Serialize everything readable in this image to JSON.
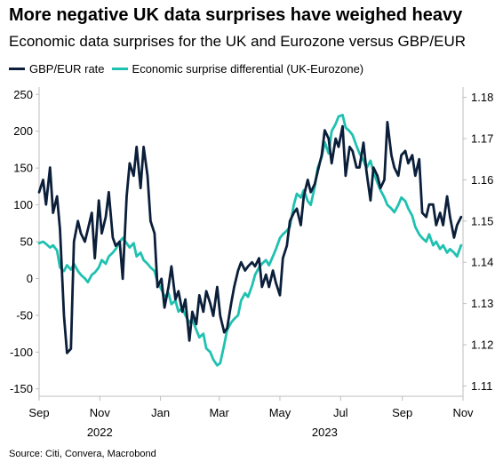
{
  "title": "More negative UK data surprises have weighed heavy",
  "subtitle": "Economic data surprises for the UK and Eurozone versus GBP/EUR",
  "source": "Source: Citi, Convera, Macrobond",
  "chart_data": {
    "type": "line",
    "legend_position": "top-left",
    "grid": false,
    "x_range": [
      "2022-09-01",
      "2023-11-01"
    ],
    "x_tick_labels": [
      "Sep",
      "Nov",
      "Jan",
      "Mar",
      "May",
      "Jul",
      "Sep",
      "Nov"
    ],
    "year_labels": [
      "2022",
      "2023"
    ],
    "left_axis": {
      "range": [
        -160,
        260
      ],
      "ticks": [
        250,
        200,
        150,
        100,
        50,
        0,
        -50,
        -100,
        -150
      ]
    },
    "right_axis": {
      "range": [
        1.1075,
        1.1825
      ],
      "ticks": [
        "1.18",
        "1.17",
        "1.16",
        "1.15",
        "1.14",
        "1.13",
        "1.12",
        "1.11"
      ]
    },
    "series": [
      {
        "name": "GBP/EUR rate",
        "axis": "right",
        "color": "#0b1f3a",
        "points": [
          [
            "2022-09-01",
            1.157
          ],
          [
            "2022-09-05",
            1.16
          ],
          [
            "2022-09-08",
            1.154
          ],
          [
            "2022-09-12",
            1.163
          ],
          [
            "2022-09-15",
            1.152
          ],
          [
            "2022-09-19",
            1.156
          ],
          [
            "2022-09-22",
            1.148
          ],
          [
            "2022-09-26",
            1.127
          ],
          [
            "2022-09-29",
            1.118
          ],
          [
            "2022-10-03",
            1.119
          ],
          [
            "2022-10-06",
            1.145
          ],
          [
            "2022-10-10",
            1.15
          ],
          [
            "2022-10-13",
            1.147
          ],
          [
            "2022-10-17",
            1.145
          ],
          [
            "2022-10-20",
            1.148
          ],
          [
            "2022-10-24",
            1.152
          ],
          [
            "2022-10-27",
            1.141
          ],
          [
            "2022-10-31",
            1.155
          ],
          [
            "2022-11-03",
            1.147
          ],
          [
            "2022-11-07",
            1.151
          ],
          [
            "2022-11-10",
            1.157
          ],
          [
            "2022-11-14",
            1.146
          ],
          [
            "2022-11-17",
            1.144
          ],
          [
            "2022-11-21",
            1.145
          ],
          [
            "2022-11-24",
            1.136
          ],
          [
            "2022-11-28",
            1.156
          ],
          [
            "2022-12-01",
            1.164
          ],
          [
            "2022-12-05",
            1.161
          ],
          [
            "2022-12-08",
            1.168
          ],
          [
            "2022-12-12",
            1.158
          ],
          [
            "2022-12-15",
            1.168
          ],
          [
            "2022-12-19",
            1.161
          ],
          [
            "2022-12-22",
            1.15
          ],
          [
            "2022-12-26",
            1.147
          ],
          [
            "2022-12-29",
            1.134
          ],
          [
            "2023-01-02",
            1.136
          ],
          [
            "2023-01-05",
            1.129
          ],
          [
            "2023-01-09",
            1.134
          ],
          [
            "2023-01-12",
            1.139
          ],
          [
            "2023-01-16",
            1.131
          ],
          [
            "2023-01-19",
            1.133
          ],
          [
            "2023-01-23",
            1.128
          ],
          [
            "2023-01-26",
            1.131
          ],
          [
            "2023-01-30",
            1.121
          ],
          [
            "2023-02-02",
            1.128
          ],
          [
            "2023-02-06",
            1.125
          ],
          [
            "2023-02-09",
            1.132
          ],
          [
            "2023-02-13",
            1.128
          ],
          [
            "2023-02-16",
            1.133
          ],
          [
            "2023-02-20",
            1.13
          ],
          [
            "2023-02-23",
            1.127
          ],
          [
            "2023-02-27",
            1.134
          ],
          [
            "2023-03-02",
            1.127
          ],
          [
            "2023-03-06",
            1.123
          ],
          [
            "2023-03-09",
            1.124
          ],
          [
            "2023-03-13",
            1.13
          ],
          [
            "2023-03-16",
            1.134
          ],
          [
            "2023-03-20",
            1.138
          ],
          [
            "2023-03-23",
            1.14
          ],
          [
            "2023-03-27",
            1.138
          ],
          [
            "2023-03-30",
            1.139
          ],
          [
            "2023-04-03",
            1.14
          ],
          [
            "2023-04-06",
            1.139
          ],
          [
            "2023-04-10",
            1.141
          ],
          [
            "2023-04-13",
            1.134
          ],
          [
            "2023-04-17",
            1.137
          ],
          [
            "2023-04-20",
            1.134
          ],
          [
            "2023-04-24",
            1.138
          ],
          [
            "2023-04-27",
            1.135
          ],
          [
            "2023-05-01",
            1.132
          ],
          [
            "2023-05-04",
            1.141
          ],
          [
            "2023-05-08",
            1.144
          ],
          [
            "2023-05-11",
            1.15
          ],
          [
            "2023-05-15",
            1.152
          ],
          [
            "2023-05-18",
            1.153
          ],
          [
            "2023-05-22",
            1.149
          ],
          [
            "2023-05-25",
            1.156
          ],
          [
            "2023-05-29",
            1.16
          ],
          [
            "2023-06-01",
            1.157
          ],
          [
            "2023-06-05",
            1.159
          ],
          [
            "2023-06-08",
            1.162
          ],
          [
            "2023-06-12",
            1.166
          ],
          [
            "2023-06-15",
            1.172
          ],
          [
            "2023-06-19",
            1.17
          ],
          [
            "2023-06-22",
            1.164
          ],
          [
            "2023-06-26",
            1.17
          ],
          [
            "2023-06-29",
            1.168
          ],
          [
            "2023-07-03",
            1.173
          ],
          [
            "2023-07-06",
            1.161
          ],
          [
            "2023-07-10",
            1.168
          ],
          [
            "2023-07-13",
            1.167
          ],
          [
            "2023-07-17",
            1.163
          ],
          [
            "2023-07-20",
            1.163
          ],
          [
            "2023-07-24",
            1.169
          ],
          [
            "2023-07-27",
            1.162
          ],
          [
            "2023-07-31",
            1.155
          ],
          [
            "2023-08-03",
            1.163
          ],
          [
            "2023-08-07",
            1.161
          ],
          [
            "2023-08-10",
            1.158
          ],
          [
            "2023-08-14",
            1.16
          ],
          [
            "2023-08-17",
            1.174
          ],
          [
            "2023-08-21",
            1.166
          ],
          [
            "2023-08-24",
            1.163
          ],
          [
            "2023-08-28",
            1.161
          ],
          [
            "2023-08-31",
            1.166
          ],
          [
            "2023-09-04",
            1.167
          ],
          [
            "2023-09-07",
            1.164
          ],
          [
            "2023-09-11",
            1.166
          ],
          [
            "2023-09-14",
            1.161
          ],
          [
            "2023-09-18",
            1.165
          ],
          [
            "2023-09-21",
            1.152
          ],
          [
            "2023-09-25",
            1.151
          ],
          [
            "2023-09-28",
            1.154
          ],
          [
            "2023-10-02",
            1.154
          ],
          [
            "2023-10-05",
            1.149
          ],
          [
            "2023-10-09",
            1.152
          ],
          [
            "2023-10-12",
            1.149
          ],
          [
            "2023-10-16",
            1.156
          ],
          [
            "2023-10-19",
            1.151
          ],
          [
            "2023-10-23",
            1.146
          ],
          [
            "2023-10-26",
            1.149
          ],
          [
            "2023-10-30",
            1.151
          ]
        ]
      },
      {
        "name": "Economic surprise differential (UK-Eurozone)",
        "axis": "left",
        "color": "#1fc1b0",
        "points": [
          [
            "2022-09-01",
            48
          ],
          [
            "2022-09-05",
            50
          ],
          [
            "2022-09-08",
            47
          ],
          [
            "2022-09-12",
            42
          ],
          [
            "2022-09-15",
            45
          ],
          [
            "2022-09-19",
            38
          ],
          [
            "2022-09-22",
            15
          ],
          [
            "2022-09-26",
            10
          ],
          [
            "2022-09-29",
            18
          ],
          [
            "2022-10-03",
            12
          ],
          [
            "2022-10-06",
            20
          ],
          [
            "2022-10-10",
            10
          ],
          [
            "2022-10-13",
            5
          ],
          [
            "2022-10-17",
            0
          ],
          [
            "2022-10-20",
            -5
          ],
          [
            "2022-10-24",
            5
          ],
          [
            "2022-10-27",
            8
          ],
          [
            "2022-10-31",
            15
          ],
          [
            "2022-11-03",
            25
          ],
          [
            "2022-11-07",
            20
          ],
          [
            "2022-11-10",
            30
          ],
          [
            "2022-11-14",
            35
          ],
          [
            "2022-11-17",
            40
          ],
          [
            "2022-11-21",
            50
          ],
          [
            "2022-11-24",
            55
          ],
          [
            "2022-11-28",
            48
          ],
          [
            "2022-12-01",
            42
          ],
          [
            "2022-12-05",
            48
          ],
          [
            "2022-12-08",
            30
          ],
          [
            "2022-12-12",
            35
          ],
          [
            "2022-12-15",
            25
          ],
          [
            "2022-12-19",
            20
          ],
          [
            "2022-12-22",
            15
          ],
          [
            "2022-12-26",
            10
          ],
          [
            "2022-12-29",
            -5
          ],
          [
            "2023-01-02",
            -15
          ],
          [
            "2023-01-05",
            -25
          ],
          [
            "2023-01-09",
            -20
          ],
          [
            "2023-01-12",
            -35
          ],
          [
            "2023-01-16",
            -30
          ],
          [
            "2023-01-19",
            -45
          ],
          [
            "2023-01-23",
            -40
          ],
          [
            "2023-01-26",
            -50
          ],
          [
            "2023-01-30",
            -60
          ],
          [
            "2023-02-02",
            -55
          ],
          [
            "2023-02-06",
            -70
          ],
          [
            "2023-02-09",
            -80
          ],
          [
            "2023-02-13",
            -75
          ],
          [
            "2023-02-16",
            -95
          ],
          [
            "2023-02-20",
            -100
          ],
          [
            "2023-02-23",
            -110
          ],
          [
            "2023-02-27",
            -118
          ],
          [
            "2023-03-02",
            -115
          ],
          [
            "2023-03-06",
            -90
          ],
          [
            "2023-03-09",
            -70
          ],
          [
            "2023-03-13",
            -60
          ],
          [
            "2023-03-16",
            -55
          ],
          [
            "2023-03-20",
            -50
          ],
          [
            "2023-03-23",
            -30
          ],
          [
            "2023-03-27",
            -20
          ],
          [
            "2023-03-30",
            -25
          ],
          [
            "2023-04-03",
            -10
          ],
          [
            "2023-04-06",
            5
          ],
          [
            "2023-04-10",
            15
          ],
          [
            "2023-04-13",
            20
          ],
          [
            "2023-04-17",
            25
          ],
          [
            "2023-04-20",
            18
          ],
          [
            "2023-04-24",
            30
          ],
          [
            "2023-04-27",
            40
          ],
          [
            "2023-05-01",
            55
          ],
          [
            "2023-05-04",
            60
          ],
          [
            "2023-05-08",
            65
          ],
          [
            "2023-05-11",
            70
          ],
          [
            "2023-05-15",
            100
          ],
          [
            "2023-05-18",
            115
          ],
          [
            "2023-05-22",
            110
          ],
          [
            "2023-05-25",
            120
          ],
          [
            "2023-05-29",
            105
          ],
          [
            "2023-06-01",
            100
          ],
          [
            "2023-06-05",
            125
          ],
          [
            "2023-06-08",
            150
          ],
          [
            "2023-06-12",
            165
          ],
          [
            "2023-06-15",
            185
          ],
          [
            "2023-06-19",
            170
          ],
          [
            "2023-06-22",
            200
          ],
          [
            "2023-06-26",
            210
          ],
          [
            "2023-06-29",
            220
          ],
          [
            "2023-07-03",
            222
          ],
          [
            "2023-07-06",
            205
          ],
          [
            "2023-07-10",
            200
          ],
          [
            "2023-07-13",
            195
          ],
          [
            "2023-07-17",
            180
          ],
          [
            "2023-07-20",
            170
          ],
          [
            "2023-07-24",
            160
          ],
          [
            "2023-07-27",
            150
          ],
          [
            "2023-07-31",
            160
          ],
          [
            "2023-08-03",
            145
          ],
          [
            "2023-08-07",
            130
          ],
          [
            "2023-08-10",
            120
          ],
          [
            "2023-08-14",
            110
          ],
          [
            "2023-08-17",
            100
          ],
          [
            "2023-08-21",
            95
          ],
          [
            "2023-08-24",
            90
          ],
          [
            "2023-08-28",
            100
          ],
          [
            "2023-08-31",
            110
          ],
          [
            "2023-09-04",
            105
          ],
          [
            "2023-09-07",
            95
          ],
          [
            "2023-09-11",
            85
          ],
          [
            "2023-09-14",
            70
          ],
          [
            "2023-09-18",
            60
          ],
          [
            "2023-09-21",
            55
          ],
          [
            "2023-09-25",
            50
          ],
          [
            "2023-09-28",
            60
          ],
          [
            "2023-10-02",
            45
          ],
          [
            "2023-10-05",
            50
          ],
          [
            "2023-10-09",
            40
          ],
          [
            "2023-10-12",
            45
          ],
          [
            "2023-10-16",
            35
          ],
          [
            "2023-10-19",
            40
          ],
          [
            "2023-10-23",
            35
          ],
          [
            "2023-10-26",
            30
          ],
          [
            "2023-10-30",
            45
          ]
        ]
      }
    ]
  }
}
